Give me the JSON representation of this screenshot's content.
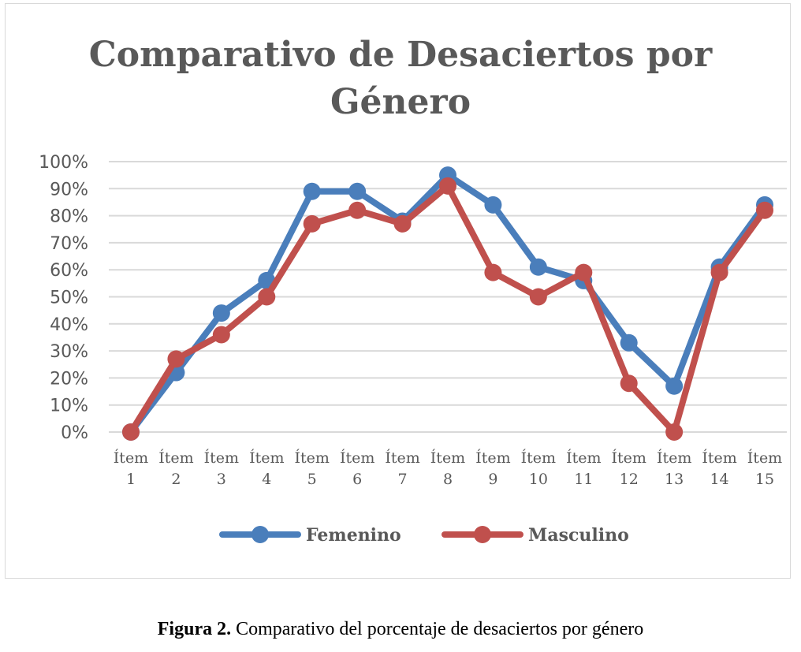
{
  "chart_data": {
    "type": "line",
    "title_lines": [
      "Comparativo de Desaciertos por",
      "Género"
    ],
    "categories": [
      [
        "Ítem",
        "1"
      ],
      [
        "Ítem",
        "2"
      ],
      [
        "Ítem",
        "3"
      ],
      [
        "Ítem",
        "4"
      ],
      [
        "Ítem",
        "5"
      ],
      [
        "Ítem",
        "6"
      ],
      [
        "Ítem",
        "7"
      ],
      [
        "Ítem",
        "8"
      ],
      [
        "Ítem",
        "9"
      ],
      [
        "Ítem",
        "10"
      ],
      [
        "Ítem",
        "11"
      ],
      [
        "Ítem",
        "12"
      ],
      [
        "Ítem",
        "13"
      ],
      [
        "Ítem",
        "14"
      ],
      [
        "Ítem",
        "15"
      ]
    ],
    "yticks": [
      "0%",
      "10%",
      "20%",
      "30%",
      "40%",
      "50%",
      "60%",
      "70%",
      "80%",
      "90%",
      "100%"
    ],
    "ylim": [
      0,
      100
    ],
    "grid": true,
    "legend_position": "bottom",
    "series": [
      {
        "name": "Femenino",
        "color": "#4a7ebb",
        "values": [
          0,
          22,
          44,
          56,
          89,
          89,
          78,
          95,
          84,
          61,
          56,
          33,
          17,
          61,
          84
        ]
      },
      {
        "name": "Masculino",
        "color": "#c0504d",
        "values": [
          0,
          27,
          36,
          50,
          77,
          82,
          77,
          91,
          59,
          50,
          59,
          18,
          0,
          59,
          82
        ]
      }
    ]
  },
  "caption": {
    "label": "Figura 2.",
    "text": " Comparativo del porcentaje de desaciertos por género"
  }
}
